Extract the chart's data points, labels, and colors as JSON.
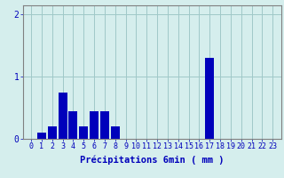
{
  "categories": [
    0,
    1,
    2,
    3,
    4,
    5,
    6,
    7,
    8,
    9,
    10,
    11,
    12,
    13,
    14,
    15,
    16,
    17,
    18,
    19,
    20,
    21,
    22,
    23
  ],
  "values": [
    0.0,
    0.1,
    0.2,
    0.75,
    0.45,
    0.2,
    0.45,
    0.45,
    0.2,
    0.0,
    0.0,
    0.0,
    0.0,
    0.0,
    0.0,
    0.0,
    0.0,
    1.3,
    0.0,
    0.0,
    0.0,
    0.0,
    0.0,
    0.0
  ],
  "bar_color": "#0000bb",
  "background_color": "#d5eeed",
  "grid_color": "#a0c8c8",
  "axis_color": "#808080",
  "text_color": "#0000bb",
  "xlabel": "Précipitations 6min ( mm )",
  "ylim_max": 2.15,
  "yticks": [
    0,
    1,
    2
  ],
  "label_fontsize": 7.5,
  "tick_fontsize": 6.0
}
